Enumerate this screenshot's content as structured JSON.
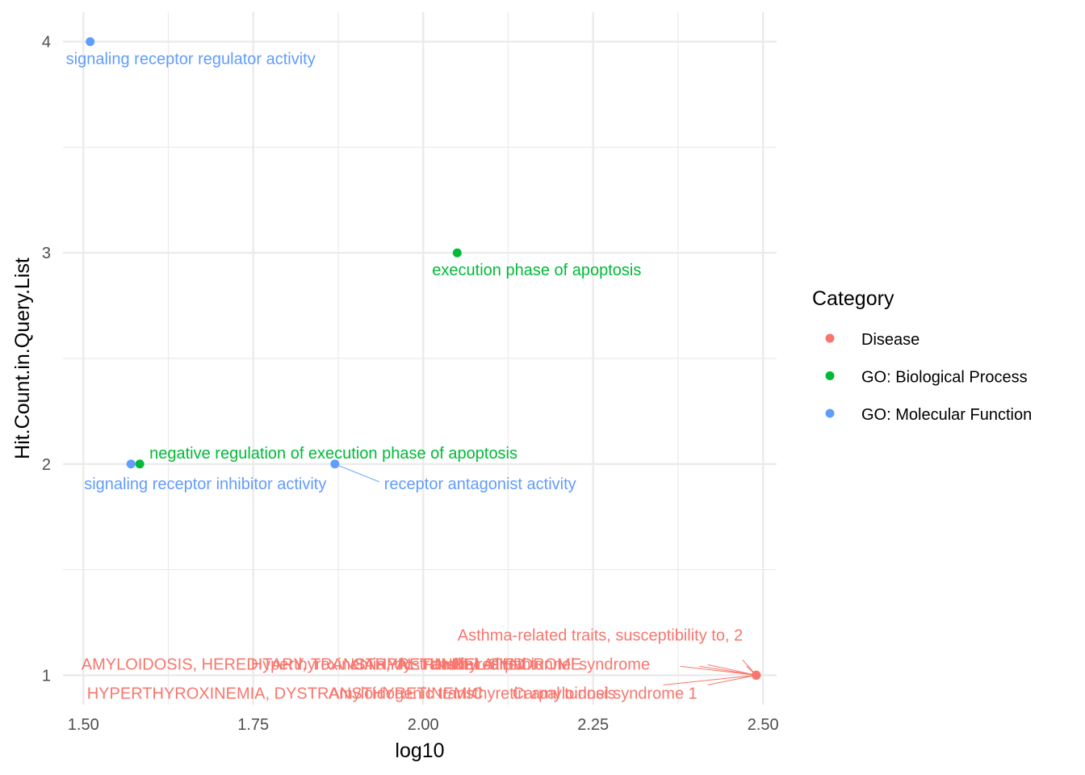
{
  "chart_data": {
    "type": "scatter",
    "xlabel": "log10",
    "ylabel": "Hit.Count.in.Query.List",
    "xlim": [
      1.47,
      2.52
    ],
    "ylim": [
      0.86,
      4.14
    ],
    "x_ticks": [
      1.5,
      1.75,
      2.0,
      2.25,
      2.5
    ],
    "x_tick_labels": [
      "1.50",
      "1.75",
      "2.00",
      "2.25",
      "2.50"
    ],
    "y_ticks": [
      1,
      2,
      3,
      4
    ],
    "y_tick_labels": [
      "1",
      "2",
      "3",
      "4"
    ],
    "grid": true,
    "legend": {
      "title": "Category",
      "placement": "right",
      "entries": [
        {
          "label": "Disease",
          "color": "#F8766D"
        },
        {
          "label": "GO: Biological Process",
          "color": "#00BA38"
        },
        {
          "label": "GO: Molecular Function",
          "color": "#619CFF"
        }
      ]
    },
    "points": [
      {
        "x": 1.51,
        "y": 4,
        "category": "GO: Molecular Function",
        "label": "signaling receptor regulator activity"
      },
      {
        "x": 2.05,
        "y": 3,
        "category": "GO: Biological Process",
        "label": "execution phase of apoptosis"
      },
      {
        "x": 1.583,
        "y": 2,
        "category": "GO: Biological Process",
        "label": "negative regulation of execution phase of apoptosis"
      },
      {
        "x": 1.57,
        "y": 2,
        "category": "GO: Molecular Function",
        "label": "signaling receptor inhibitor activity"
      },
      {
        "x": 1.87,
        "y": 2,
        "category": "GO: Molecular Function",
        "label": "receptor antagonist activity"
      },
      {
        "x": 2.49,
        "y": 1,
        "category": "Disease",
        "label": "Asthma-related traits, susceptibility to, 2"
      },
      {
        "x": 2.49,
        "y": 1,
        "category": "Disease",
        "label": "AMYLOIDOSIS, HEREDITARY, TRANSTHYRETIN-RELATED"
      },
      {
        "x": 2.49,
        "y": 1,
        "category": "Disease",
        "label": "Hyperthyroxinemia, dystransthyretinemic"
      },
      {
        "x": 2.49,
        "y": 1,
        "category": "Disease",
        "label": "CARPAL TUNNEL SYNDROME"
      },
      {
        "x": 2.49,
        "y": 1,
        "category": "Disease",
        "label": "Familial carpal tunnel syndrome"
      },
      {
        "x": 2.49,
        "y": 1,
        "category": "Disease",
        "label": "HYPERTHYROXINEMIA, DYSTRANSTHYRETINEMIC"
      },
      {
        "x": 2.49,
        "y": 1,
        "category": "Disease",
        "label": "Amyloidogenic transthyretin amyloidosis"
      },
      {
        "x": 2.49,
        "y": 1,
        "category": "Disease",
        "label": "Carpal tunnel syndrome 1"
      }
    ]
  }
}
